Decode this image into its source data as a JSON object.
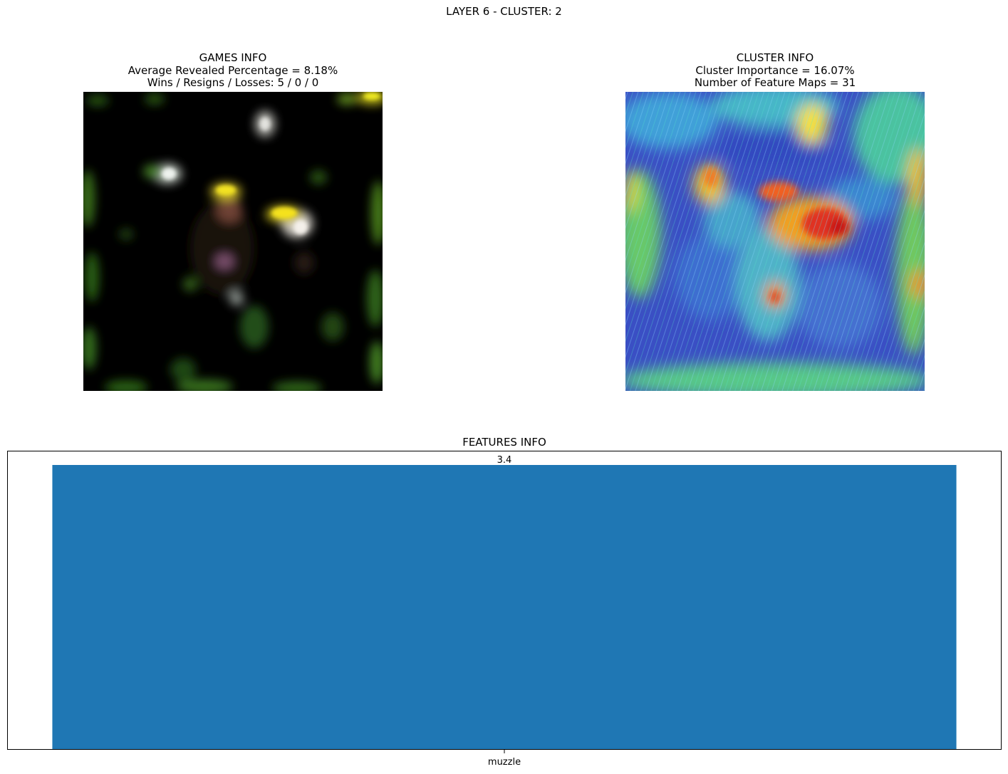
{
  "suptitle": "LAYER 6 - CLUSTER: 2",
  "games_info": {
    "title": "GAMES INFO",
    "avg_revealed": "Average Revealed Percentage = 8.18%",
    "wins_resigns_losses": "Wins / Resigns / Losses: 5 / 0 / 0"
  },
  "cluster_info": {
    "title": "CLUSTER INFO",
    "importance": "Cluster Importance = 16.07%",
    "feature_maps": "Number of Feature Maps = 31"
  },
  "chart_data": {
    "type": "bar",
    "title": "FEATURES INFO",
    "categories": [
      "muzzle"
    ],
    "values": [
      3.4
    ],
    "data_labels": [
      "3.4"
    ],
    "xlabel": "",
    "ylabel": "",
    "ylim": [
      0,
      3.57
    ],
    "yticks_visible": false,
    "grid": false,
    "bar_color": "#1f77b4"
  }
}
